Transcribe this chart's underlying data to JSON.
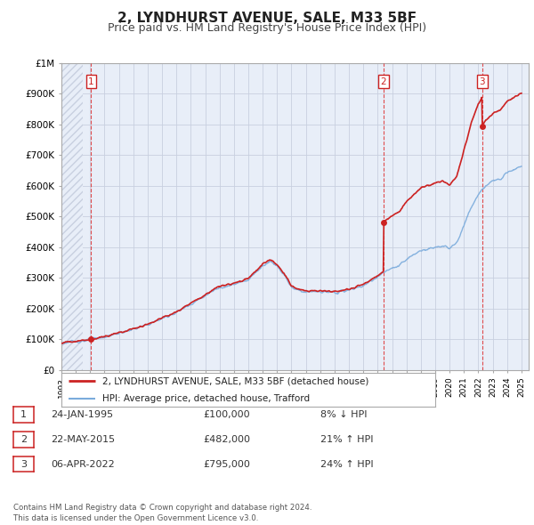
{
  "title": "2, LYNDHURST AVENUE, SALE, M33 5BF",
  "subtitle": "Price paid vs. HM Land Registry's House Price Index (HPI)",
  "title_fontsize": 11,
  "subtitle_fontsize": 9,
  "bg_color": "#ffffff",
  "plot_bg_color": "#e8eef8",
  "hatch_color": "#c8d0e0",
  "grid_color": "#c8d0e0",
  "ylim": [
    0,
    1000000
  ],
  "yticks": [
    0,
    100000,
    200000,
    300000,
    400000,
    500000,
    600000,
    700000,
    800000,
    900000,
    1000000
  ],
  "ytick_labels": [
    "£0",
    "£100K",
    "£200K",
    "£300K",
    "£400K",
    "£500K",
    "£600K",
    "£700K",
    "£800K",
    "£900K",
    "£1M"
  ],
  "xlim_start": 1993.0,
  "xlim_end": 2025.5,
  "xtick_years": [
    1993,
    1994,
    1995,
    1996,
    1997,
    1998,
    1999,
    2000,
    2001,
    2002,
    2003,
    2004,
    2005,
    2006,
    2007,
    2008,
    2009,
    2010,
    2011,
    2012,
    2013,
    2014,
    2015,
    2016,
    2017,
    2018,
    2019,
    2020,
    2021,
    2022,
    2023,
    2024,
    2025
  ],
  "sales": [
    {
      "year": 1995.07,
      "price": 100000,
      "label": "1"
    },
    {
      "year": 2015.4,
      "price": 482000,
      "label": "2"
    },
    {
      "year": 2022.27,
      "price": 795000,
      "label": "3"
    }
  ],
  "sale_vline_color": "#dd2222",
  "legend_line1_color": "#cc2222",
  "legend_line2_color": "#7aabdc",
  "legend1_label": "2, LYNDHURST AVENUE, SALE, M33 5BF (detached house)",
  "legend2_label": "HPI: Average price, detached house, Trafford",
  "table_data": [
    {
      "num": "1",
      "date": "24-JAN-1995",
      "price": "£100,000",
      "hpi": "8% ↓ HPI"
    },
    {
      "num": "2",
      "date": "22-MAY-2015",
      "price": "£482,000",
      "hpi": "21% ↑ HPI"
    },
    {
      "num": "3",
      "date": "06-APR-2022",
      "price": "£795,000",
      "hpi": "24% ↑ HPI"
    }
  ],
  "footer": "Contains HM Land Registry data © Crown copyright and database right 2024.\nThis data is licensed under the Open Government Licence v3.0.",
  "hatch_end_year": 1994.5
}
